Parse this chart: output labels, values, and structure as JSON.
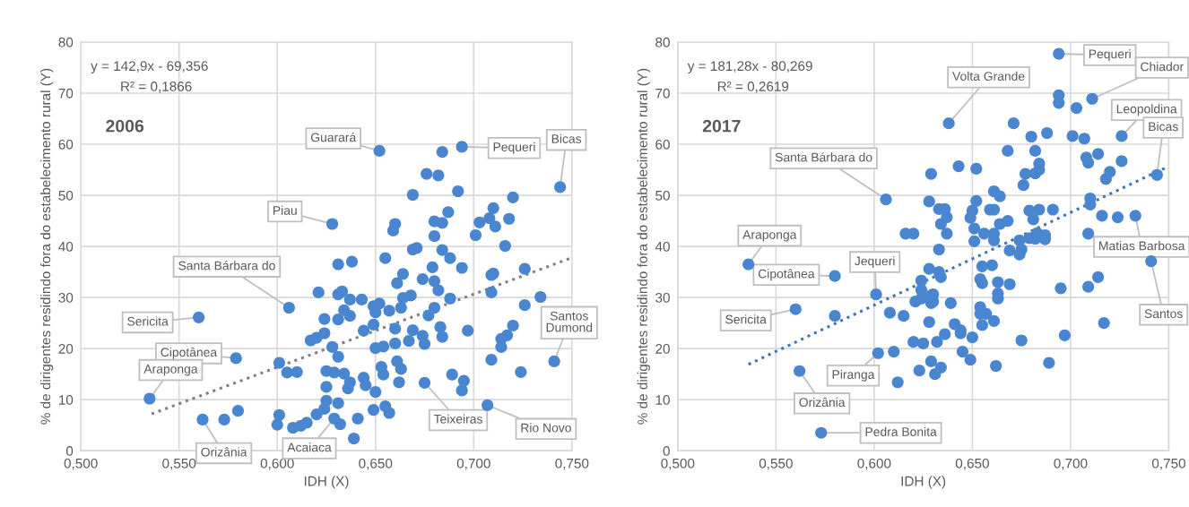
{
  "chart_data": [
    {
      "type": "scatter",
      "title": "2006",
      "xlabel": "IDH (X)",
      "ylabel": "% de dirigentes residindo fora do estabelecimento rural (Y)",
      "xlim": [
        0.5,
        0.75
      ],
      "xticks": [
        {
          "value": 0.5,
          "label": "0,500"
        },
        {
          "value": 0.55,
          "label": "0,550"
        },
        {
          "value": 0.6,
          "label": "0,600"
        },
        {
          "value": 0.65,
          "label": "0,650"
        },
        {
          "value": 0.7,
          "label": "0,700"
        },
        {
          "value": 0.75,
          "label": "0,750"
        }
      ],
      "ylim": [
        0,
        80
      ],
      "yticks": [
        0,
        10,
        20,
        30,
        40,
        50,
        60,
        70,
        80
      ],
      "grid": true,
      "series": [
        {
          "type": "scatter",
          "marker": "circle",
          "color": "#4a86d0",
          "x": [
            0.628,
            0.631,
            0.621,
            0.631,
            0.606,
            0.56,
            0.624,
            0.631,
            0.624,
            0.617,
            0.62,
            0.628,
            0.579,
            0.631,
            0.601,
            0.605,
            0.61,
            0.625,
            0.629,
            0.625,
            0.535,
            0.625,
            0.631,
            0.624,
            0.62,
            0.58,
            0.573,
            0.562,
            0.601,
            0.6,
            0.608,
            0.612,
            0.615,
            0.629,
            0.652,
            0.684,
            0.694,
            0.744,
            0.676,
            0.682,
            0.692,
            0.669,
            0.72,
            0.71,
            0.708,
            0.711,
            0.703,
            0.701,
            0.718,
            0.687,
            0.68,
            0.684,
            0.68,
            0.66,
            0.659,
            0.716,
            0.669,
            0.671,
            0.684,
            0.688,
            0.655,
            0.638,
            0.679,
            0.694,
            0.726,
            0.664,
            0.709,
            0.71,
            0.661,
            0.674,
            0.68,
            0.682,
            0.709,
            0.633,
            0.643,
            0.637,
            0.664,
            0.668,
            0.688,
            0.734,
            0.726,
            0.649,
            0.652,
            0.65,
            0.657,
            0.663,
            0.68,
            0.677,
            0.634,
            0.637,
            0.72,
            0.649,
            0.644,
            0.66,
            0.669,
            0.683,
            0.684,
            0.697,
            0.714,
            0.717,
            0.714,
            0.674,
            0.675,
            0.667,
            0.66,
            0.65,
            0.654,
            0.709,
            0.741,
            0.724,
            0.653,
            0.654,
            0.661,
            0.663,
            0.662,
            0.634,
            0.637,
            0.636,
            0.644,
            0.645,
            0.65,
            0.675,
            0.689,
            0.695,
            0.694,
            0.707,
            0.649,
            0.655,
            0.657,
            0.641,
            0.632,
            0.639
          ],
          "values": [
            44.4,
            36.5,
            31.0,
            30.6,
            28.0,
            26.1,
            25.8,
            25.7,
            23.0,
            21.6,
            22.1,
            20.3,
            18.1,
            18.4,
            17.2,
            15.3,
            15.4,
            15.6,
            15.3,
            12.5,
            10.2,
            9.8,
            9.3,
            8.2,
            7.1,
            7.8,
            6.1,
            6.1,
            7.0,
            5.1,
            4.5,
            4.9,
            5.5,
            6.3,
            58.7,
            58.5,
            59.5,
            51.6,
            54.2,
            53.9,
            50.8,
            50.1,
            49.6,
            47.5,
            45.5,
            43.9,
            44.7,
            42.2,
            45.4,
            46.7,
            44.9,
            44.6,
            42.0,
            44.4,
            43.1,
            40.1,
            39.4,
            39.7,
            39.3,
            37.7,
            37.7,
            37.0,
            35.9,
            35.8,
            35.6,
            34.6,
            34.4,
            34.7,
            32.8,
            33.6,
            33.2,
            31.4,
            31.0,
            31.2,
            29.6,
            29.6,
            29.9,
            30.4,
            29.8,
            30.1,
            28.5,
            28.3,
            28.8,
            27.1,
            27.4,
            28.0,
            28.0,
            26.5,
            27.5,
            26.4,
            24.5,
            24.7,
            23.5,
            23.9,
            23.6,
            24.2,
            22.3,
            23.5,
            21.9,
            22.6,
            20.3,
            22.5,
            20.9,
            21.5,
            21.0,
            20.1,
            20.4,
            17.8,
            17.5,
            15.4,
            16.4,
            14.9,
            17.5,
            16.0,
            13.4,
            15.1,
            13.4,
            12.2,
            14.3,
            12.8,
            11.5,
            13.3,
            14.9,
            13.7,
            11.8,
            8.9,
            8.0,
            8.7,
            7.4,
            6.3,
            5.2,
            2.4
          ]
        },
        {
          "type": "line",
          "marker": "none",
          "line_style": "dotted",
          "color": "#7f7f7f",
          "x": [
            0.536,
            0.75
          ],
          "values": [
            7.2,
            37.8
          ]
        }
      ],
      "annotations": [
        "y = 142,9x - 69,356",
        "R² = 0,1866",
        {
          "text": "Guarará",
          "x": 0.652,
          "y": 58.7
        },
        {
          "text": "Pequeri",
          "x": 0.694,
          "y": 59.5
        },
        {
          "text": "Bicas",
          "x": 0.744,
          "y": 51.6
        },
        {
          "text": "Piau",
          "x": 0.628,
          "y": 44.4
        },
        {
          "text": "Santa Bárbara do",
          "x": 0.606,
          "y": 28.0
        },
        {
          "text": "Sericita",
          "x": 0.56,
          "y": 26.1
        },
        {
          "text": "Cipotânea",
          "x": 0.579,
          "y": 18.1
        },
        {
          "text": "Araponga",
          "x": 0.535,
          "y": 10.2
        },
        {
          "text": "Orizânia",
          "x": 0.562,
          "y": 6.1
        },
        {
          "text": "Acaiaca",
          "x": 0.629,
          "y": 6.3
        },
        {
          "text": "Teixeiras",
          "x": 0.675,
          "y": 13.3
        },
        {
          "text": "Rio Novo",
          "x": 0.707,
          "y": 8.9
        },
        {
          "text": "Santos\nDumond",
          "x": 0.741,
          "y": 17.5
        }
      ]
    },
    {
      "type": "scatter",
      "title": "2017",
      "xlabel": "IDH (X)",
      "ylabel": "% de dirigentes residindo fora do estabelecimento rural (Y)",
      "xlim": [
        0.5,
        0.75
      ],
      "xticks": [
        {
          "value": 0.5,
          "label": "0,500"
        },
        {
          "value": 0.55,
          "label": "0,550"
        },
        {
          "value": 0.6,
          "label": "0,600"
        },
        {
          "value": 0.65,
          "label": "0,650"
        },
        {
          "value": 0.7,
          "label": "0,700"
        },
        {
          "value": 0.75,
          "label": "0,750"
        }
      ],
      "ylim": [
        0,
        80
      ],
      "yticks": [
        0,
        10,
        20,
        30,
        40,
        50,
        60,
        70,
        80
      ],
      "grid": true,
      "series": [
        {
          "type": "scatter",
          "marker": "circle",
          "color": "#4a86d0",
          "x": [
            0.606,
            0.629,
            0.628,
            0.616,
            0.62,
            0.536,
            0.58,
            0.601,
            0.628,
            0.624,
            0.624,
            0.624,
            0.621,
            0.629,
            0.629,
            0.56,
            0.58,
            0.608,
            0.615,
            0.628,
            0.62,
            0.625,
            0.602,
            0.61,
            0.562,
            0.623,
            0.629,
            0.612,
            0.573,
            0.694,
            0.711,
            0.694,
            0.694,
            0.703,
            0.638,
            0.671,
            0.68,
            0.688,
            0.701,
            0.707,
            0.726,
            0.668,
            0.682,
            0.708,
            0.714,
            0.709,
            0.726,
            0.643,
            0.652,
            0.684,
            0.682,
            0.677,
            0.684,
            0.676,
            0.72,
            0.718,
            0.744,
            0.661,
            0.664,
            0.652,
            0.65,
            0.649,
            0.651,
            0.651,
            0.633,
            0.636,
            0.637,
            0.634,
            0.637,
            0.659,
            0.661,
            0.664,
            0.668,
            0.656,
            0.661,
            0.661,
            0.679,
            0.684,
            0.681,
            0.691,
            0.71,
            0.71,
            0.716,
            0.724,
            0.733,
            0.709,
            0.679,
            0.683,
            0.687,
            0.682,
            0.687,
            0.674,
            0.675,
            0.674,
            0.669,
            0.633,
            0.633,
            0.634,
            0.655,
            0.66,
            0.654,
            0.655,
            0.663,
            0.669,
            0.663,
            0.663,
            0.63,
            0.63,
            0.639,
            0.695,
            0.709,
            0.714,
            0.741,
            0.654,
            0.654,
            0.657,
            0.661,
            0.655,
            0.641,
            0.644,
            0.644,
            0.636,
            0.65,
            0.675,
            0.697,
            0.717,
            0.632,
            0.645,
            0.649,
            0.634,
            0.631,
            0.662,
            0.689
          ],
          "values": [
            49.2,
            54.2,
            48.8,
            42.5,
            42.5,
            36.5,
            34.2,
            30.6,
            35.6,
            33.3,
            31.5,
            29.8,
            29.2,
            30.4,
            28.9,
            27.7,
            26.4,
            27.0,
            26.4,
            25.2,
            21.3,
            21.0,
            19.1,
            19.4,
            15.6,
            15.7,
            17.5,
            13.4,
            3.5,
            77.7,
            68.9,
            69.6,
            68.1,
            67.1,
            64.1,
            64.1,
            61.5,
            62.2,
            61.6,
            61.1,
            61.6,
            58.7,
            58.7,
            57.4,
            58.1,
            56.4,
            56.7,
            55.7,
            55.2,
            56.2,
            54.3,
            54.2,
            55.0,
            52.0,
            54.6,
            53.2,
            54.0,
            50.8,
            49.8,
            48.9,
            47.0,
            45.6,
            43.5,
            41.0,
            47.3,
            47.3,
            45.7,
            44.4,
            42.5,
            47.2,
            47.2,
            44.4,
            45.0,
            42.5,
            42.5,
            41.2,
            47.0,
            47.2,
            45.3,
            47.2,
            49.4,
            48.2,
            46.0,
            45.7,
            46.0,
            42.5,
            41.6,
            42.6,
            42.2,
            41.5,
            41.4,
            41.2,
            39.4,
            38.4,
            39.2,
            39.4,
            35.0,
            34.0,
            36.1,
            36.3,
            33.6,
            32.8,
            33.0,
            32.6,
            30.8,
            29.8,
            30.6,
            29.2,
            28.9,
            31.8,
            32.1,
            34.0,
            37.1,
            28.1,
            26.8,
            26.8,
            25.4,
            24.6,
            24.8,
            23.6,
            23.0,
            22.8,
            22.2,
            21.6,
            22.6,
            25.0,
            21.3,
            19.4,
            17.8,
            16.3,
            15.0,
            16.6,
            17.2
          ]
        },
        {
          "type": "line",
          "marker": "none",
          "line_style": "dotted",
          "color": "#3f73b8",
          "x": [
            0.536,
            0.75
          ],
          "values": [
            16.9,
            55.7
          ]
        }
      ],
      "annotations": [
        "y = 181,28x - 80,269",
        "R² = 0,2619",
        {
          "text": "Pequeri",
          "x": 0.694,
          "y": 77.7
        },
        {
          "text": "Chiador",
          "x": 0.711,
          "y": 68.9
        },
        {
          "text": "Volta Grande",
          "x": 0.638,
          "y": 64.1
        },
        {
          "text": "Leopoldina",
          "x": 0.726,
          "y": 61.6
        },
        {
          "text": "Bicas",
          "x": 0.744,
          "y": 54.0
        },
        {
          "text": "Santa Bárbara do",
          "x": 0.606,
          "y": 49.2
        },
        {
          "text": "Araponga",
          "x": 0.536,
          "y": 36.5
        },
        {
          "text": "Cipotânea",
          "x": 0.58,
          "y": 34.2
        },
        {
          "text": "Jequeri",
          "x": 0.601,
          "y": 30.6
        },
        {
          "text": "Sericita",
          "x": 0.56,
          "y": 27.7
        },
        {
          "text": "Piranga",
          "x": 0.602,
          "y": 19.1
        },
        {
          "text": "Orizânia",
          "x": 0.562,
          "y": 15.6
        },
        {
          "text": "Pedra Bonita",
          "x": 0.573,
          "y": 3.5
        },
        {
          "text": "Matias Barbosa",
          "x": 0.733,
          "y": 46.0
        },
        {
          "text": "Santos",
          "x": 0.741,
          "y": 37.1
        }
      ]
    }
  ]
}
